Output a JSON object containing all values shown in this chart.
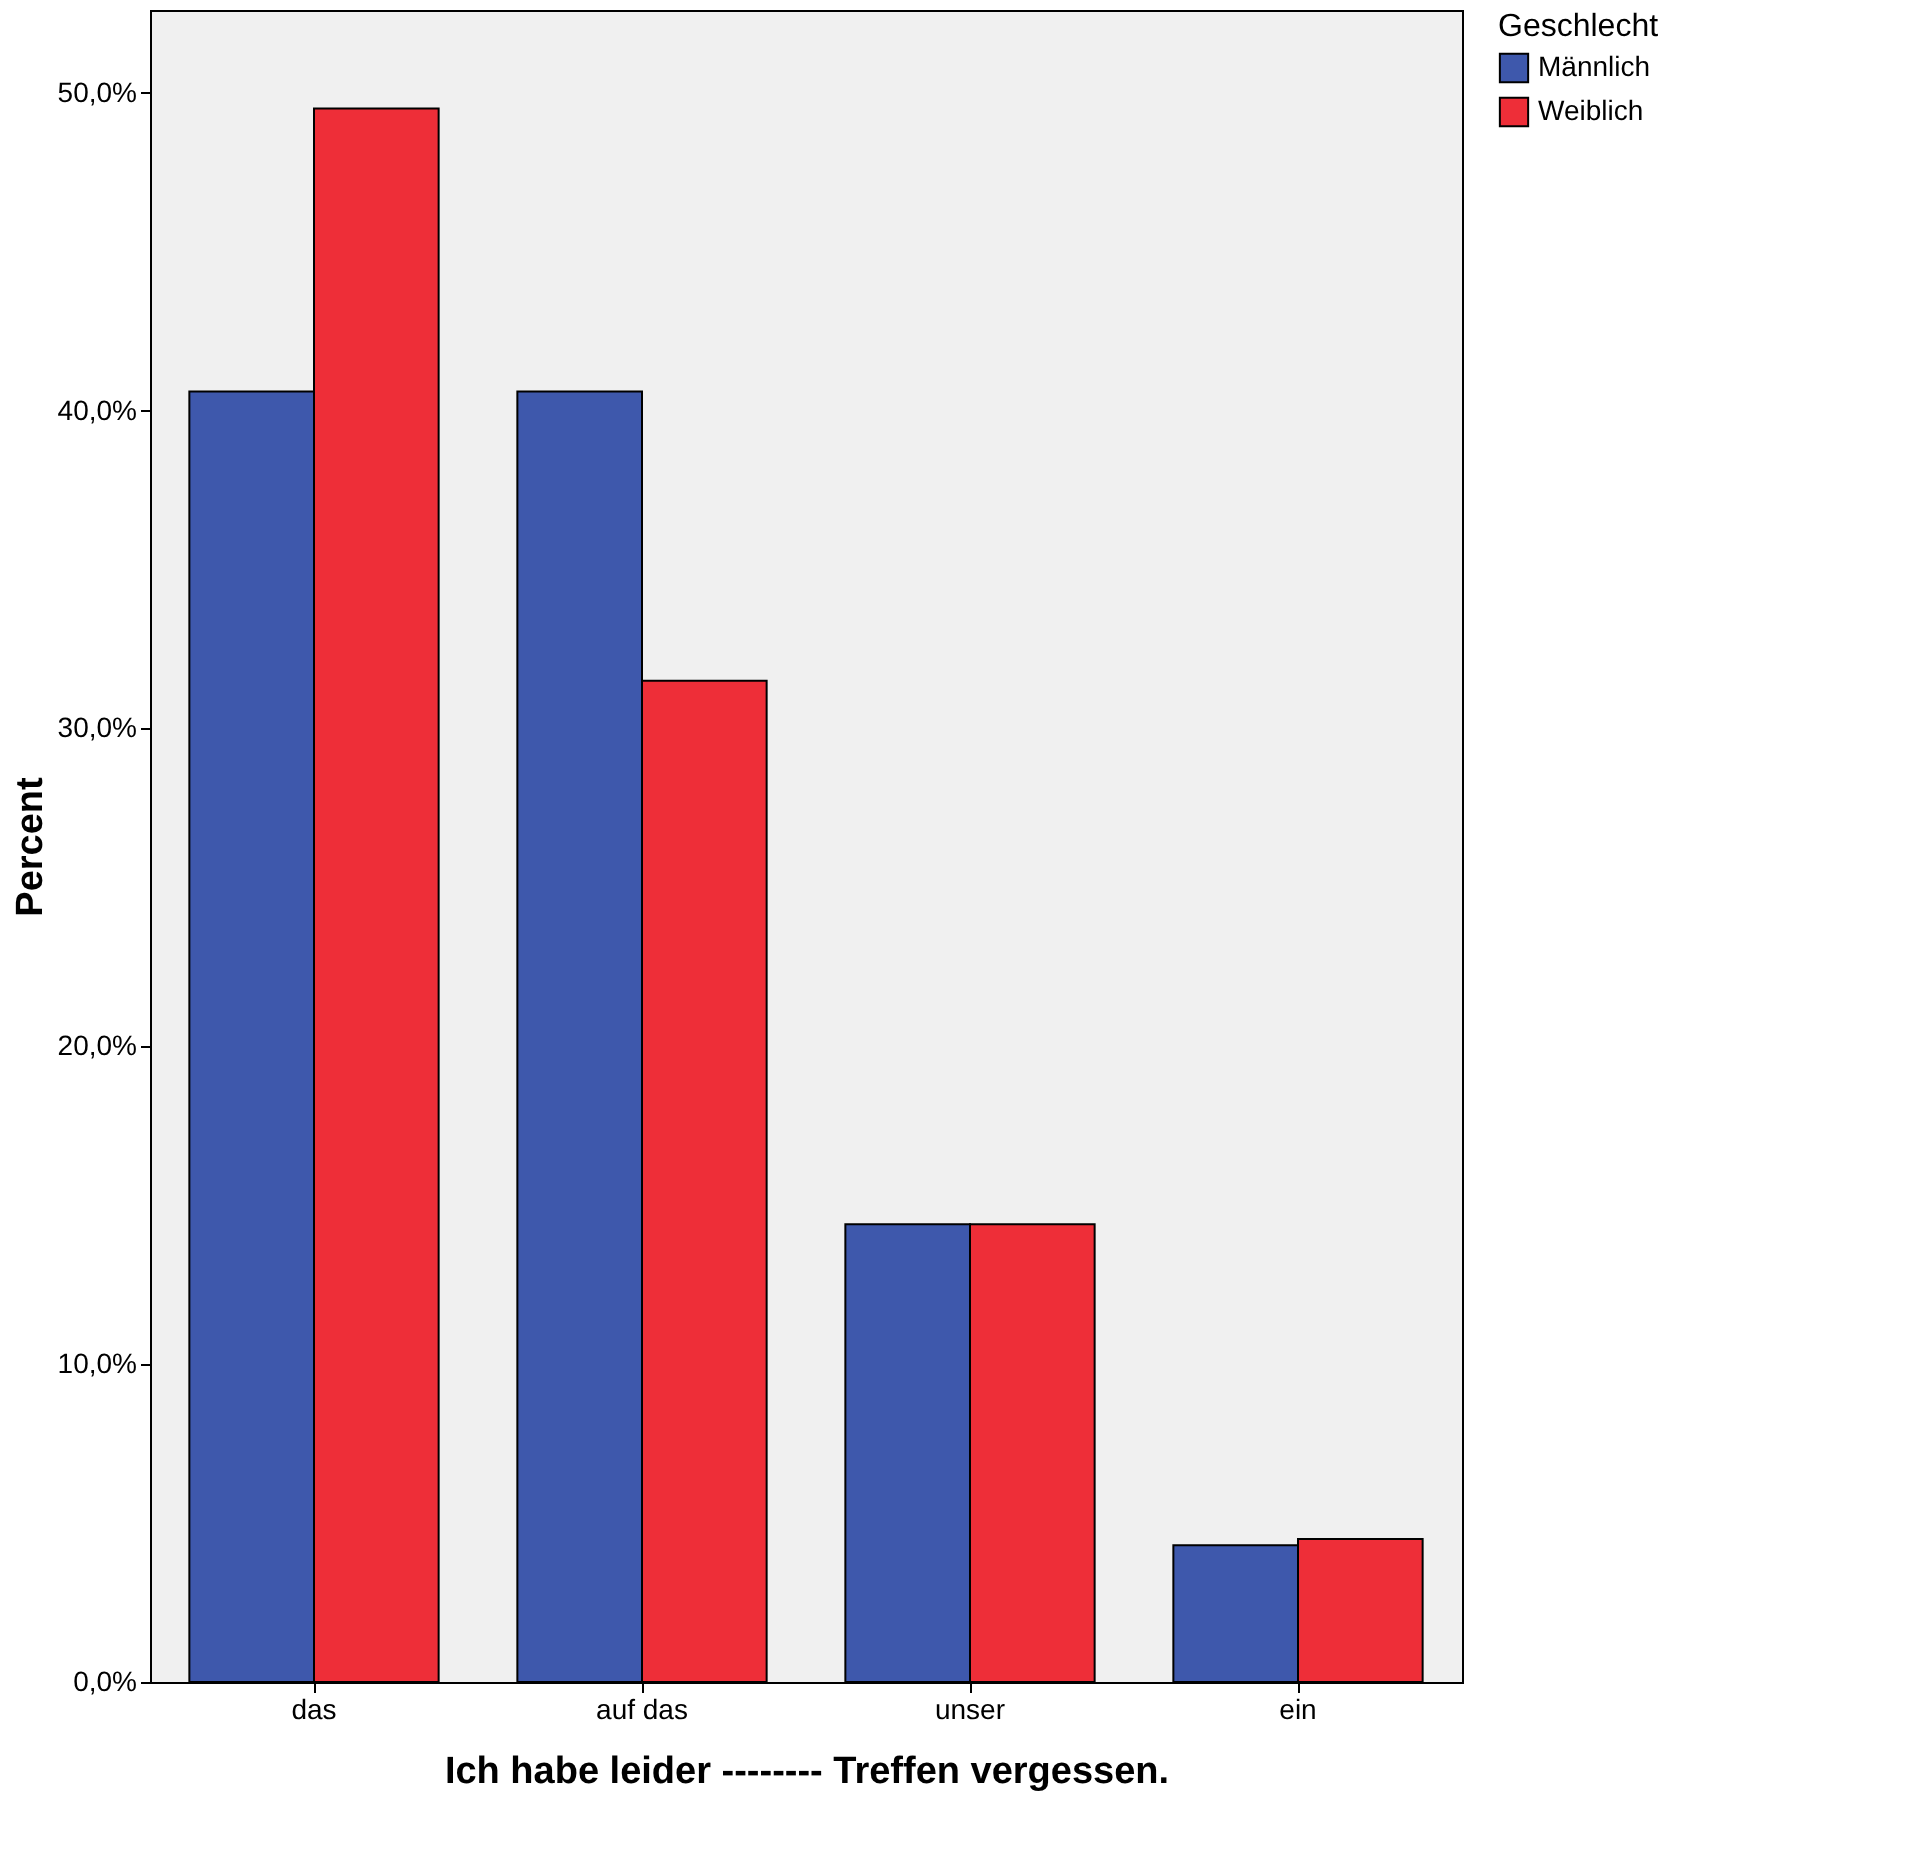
{
  "chart_data": {
    "type": "bar",
    "xlabel": "Ich habe leider -------- Treffen vergessen.",
    "ylabel": "Percent",
    "legend_title": "Geschlecht",
    "categories": [
      "das",
      "auf das",
      "unser",
      "ein"
    ],
    "series": [
      {
        "name": "Männlich",
        "color": "#3e58ac",
        "values": [
          40.6,
          40.6,
          14.4,
          4.3
        ]
      },
      {
        "name": "Weiblich",
        "color": "#ee2e38",
        "values": [
          49.5,
          31.5,
          14.4,
          4.5
        ]
      }
    ],
    "ylim": [
      0,
      52.6
    ],
    "yticks": [
      {
        "value": 0,
        "label": "0,0%"
      },
      {
        "value": 10,
        "label": "10,0%"
      },
      {
        "value": 20,
        "label": "20,0%"
      },
      {
        "value": 30,
        "label": "30,0%"
      },
      {
        "value": 40,
        "label": "40,0%"
      },
      {
        "value": 50,
        "label": "50,0%"
      }
    ],
    "grid": false,
    "legend": "top right"
  }
}
